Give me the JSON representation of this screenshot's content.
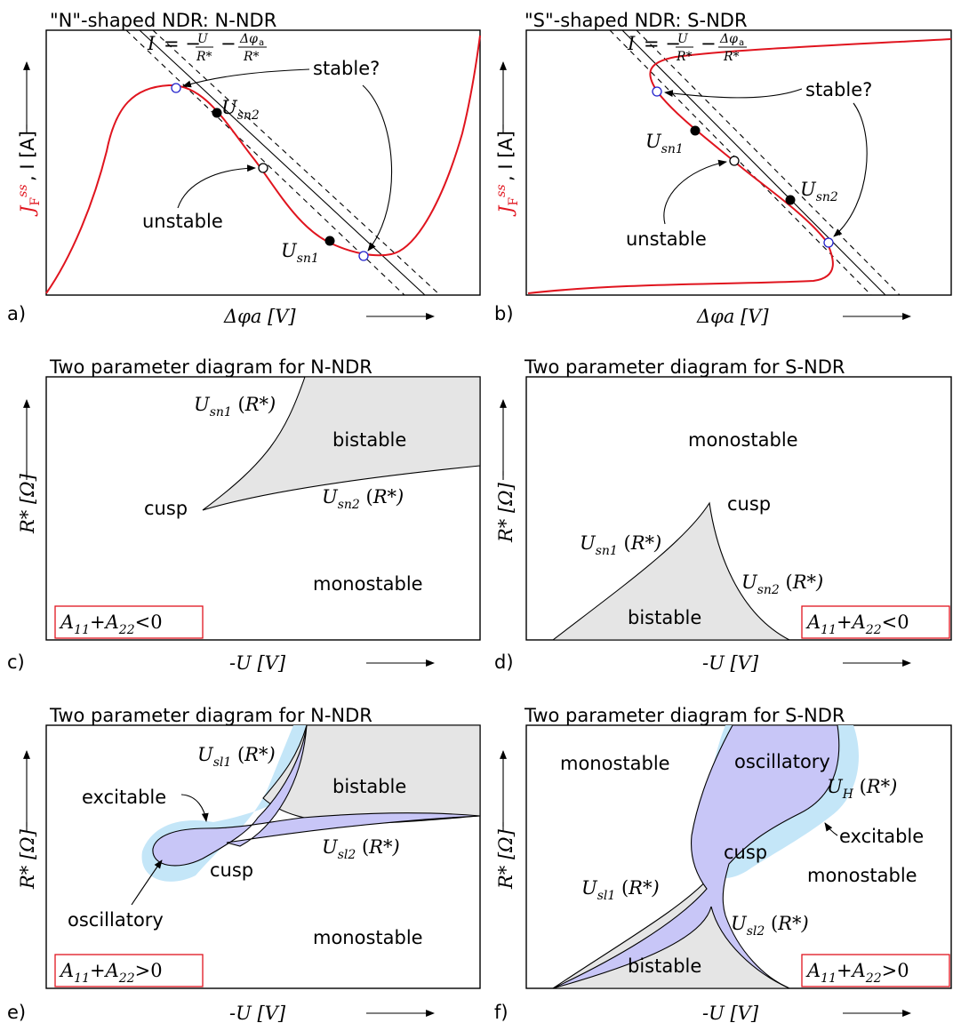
{
  "panels": {
    "a": {
      "letter": "a)",
      "title": "\"N\"-shaped NDR: N-NDR",
      "load_line": "I = −U/R* − Δφa/R*",
      "ylabel_red": "J_F^ss",
      "ylabel_rest": ", I [A]",
      "xlabel": "Δφa [V]",
      "stable": "stable?",
      "unstable": "unstable",
      "point1": "Usn1",
      "point2": "Usn2"
    },
    "b": {
      "letter": "b)",
      "title": "\"S\"-shaped NDR: S-NDR",
      "load_line": "I = −U/R* − Δφa/R*",
      "ylabel_red": "J_F^ss",
      "ylabel_rest": ", I [A]",
      "xlabel": "Δφa [V]",
      "stable": "stable?",
      "unstable": "unstable",
      "point1": "Usn1",
      "point2": "Usn2"
    },
    "c": {
      "letter": "c)",
      "title": "Two parameter diagram for N-NDR",
      "ylabel": "R* [Ω]",
      "xlabel": "-U [V]",
      "region_bistable": "bistable",
      "region_monostable": "monostable",
      "cusp": "cusp",
      "curve1": "Usn1 (R*)",
      "curve2": "Usn2 (R*)",
      "condition": "A11+A22<0"
    },
    "d": {
      "letter": "d)",
      "title": "Two parameter diagram for S-NDR",
      "ylabel": "R* [Ω]",
      "xlabel": "-U [V]",
      "region_bistable": "bistable",
      "region_monostable": "monostable",
      "cusp": "cusp",
      "curve1": "Usn1 (R*)",
      "curve2": "Usn2 (R*)",
      "condition": "A11+A22<0"
    },
    "e": {
      "letter": "e)",
      "title": "Two parameter diagram for N-NDR",
      "ylabel": "R* [Ω]",
      "xlabel": "-U [V]",
      "region_bistable": "bistable",
      "region_monostable": "monostable",
      "region_excitable": "excitable",
      "region_oscillatory": "oscillatory",
      "cusp": "cusp",
      "curve1": "Usl1 (R*)",
      "curve2": "Usl2 (R*)",
      "condition": "A11+A22>0"
    },
    "f": {
      "letter": "f)",
      "title": "Two parameter diagram for S-NDR",
      "ylabel": "R* [Ω]",
      "xlabel": "-U [V]",
      "region_bistable": "bistable",
      "region_monostable_left": "monostable",
      "region_monostable_right": "monostable",
      "region_excitable": "excitable",
      "region_oscillatory": "oscillatory",
      "cusp": "cusp",
      "curve1": "Usl1 (R*)",
      "curve2": "Usl2 (R*)",
      "curve3": "UH (R*)",
      "condition": "A11+A22>0"
    }
  },
  "colors": {
    "characteristic": "#e0141e",
    "bistable_fill": "#e5e5e5",
    "oscillatory_fill": "#c8c6f7",
    "excitable_fill": "#c4e6f8",
    "stable_marker": "#2222cc"
  }
}
